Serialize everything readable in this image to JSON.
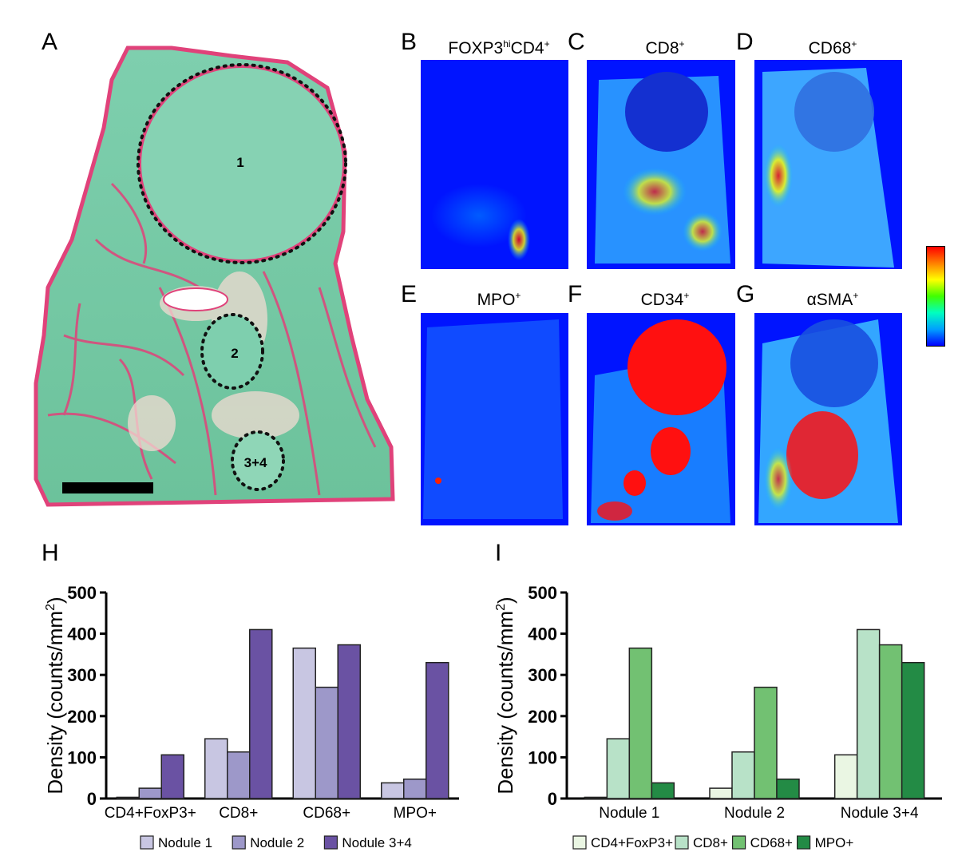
{
  "panels": {
    "A": {
      "letter": "A",
      "nodule_labels": [
        "1",
        "2",
        "3+4"
      ]
    },
    "B": {
      "letter": "B",
      "title_main": "FOXP3",
      "title_sup": "hi",
      "title_rest": "CD4",
      "title_sup2": "+"
    },
    "C": {
      "letter": "C",
      "title_main": "CD8",
      "title_sup": "+"
    },
    "D": {
      "letter": "D",
      "title_main": "CD68",
      "title_sup": "+"
    },
    "E": {
      "letter": "E",
      "title_main": "MPO",
      "title_sup": "+"
    },
    "F": {
      "letter": "F",
      "title_main": "CD34",
      "title_sup": "+"
    },
    "G": {
      "letter": "G",
      "title_main": "αSMA",
      "title_sup": "+"
    },
    "H": {
      "letter": "H"
    },
    "I": {
      "letter": "I"
    }
  },
  "colorbar": {
    "stops": [
      "#0000ff",
      "#00a0ff",
      "#00ffc0",
      "#40ff00",
      "#ffff00",
      "#ff8000",
      "#ff0000"
    ]
  },
  "colors": {
    "tissue_green": "#6fc8a0",
    "tissue_pink": "#e0427a",
    "map_blue": "#0014ff",
    "purple_1": "#c8c6e2",
    "purple_2": "#9d98c9",
    "purple_3": "#6a52a3",
    "green_1": "#eaf6e3",
    "green_2": "#b8e2c8",
    "green_3": "#72c172",
    "green_4": "#238b45"
  },
  "chart_data": [
    {
      "type": "bar",
      "panel": "H",
      "categories": [
        "CD4+FoxP3+",
        "CD8+",
        "CD68+",
        "MPO+"
      ],
      "series": [
        {
          "name": "Nodule 1",
          "values": [
            3,
            145,
            365,
            38
          ]
        },
        {
          "name": "Nodule 2",
          "values": [
            25,
            113,
            270,
            47
          ]
        },
        {
          "name": "Nodule 3+4",
          "values": [
            106,
            410,
            373,
            330
          ]
        }
      ],
      "ylabel": "Density (counts/mm²)",
      "ylabel_main": "Density (counts/mm",
      "ylabel_sup": "2",
      "ylabel_close": ")",
      "ylim": [
        0,
        500
      ],
      "yticks": [
        "0",
        "100",
        "200",
        "300",
        "400",
        "500"
      ],
      "legend_position": "bottom"
    },
    {
      "type": "bar",
      "panel": "I",
      "categories": [
        "Nodule 1",
        "Nodule 2",
        "Nodule 3+4"
      ],
      "series": [
        {
          "name": "CD4+FoxP3+",
          "values": [
            3,
            25,
            106
          ]
        },
        {
          "name": "CD8+",
          "values": [
            145,
            113,
            410
          ]
        },
        {
          "name": "CD68+",
          "values": [
            365,
            270,
            373
          ]
        },
        {
          "name": "MPO+",
          "values": [
            38,
            47,
            330
          ]
        }
      ],
      "ylabel": "Density (counts/mm²)",
      "ylabel_main": "Density (counts/mm",
      "ylabel_sup": "2",
      "ylabel_close": ")",
      "ylim": [
        0,
        500
      ],
      "yticks": [
        "0",
        "100",
        "200",
        "300",
        "400",
        "500"
      ],
      "legend_position": "bottom"
    }
  ]
}
